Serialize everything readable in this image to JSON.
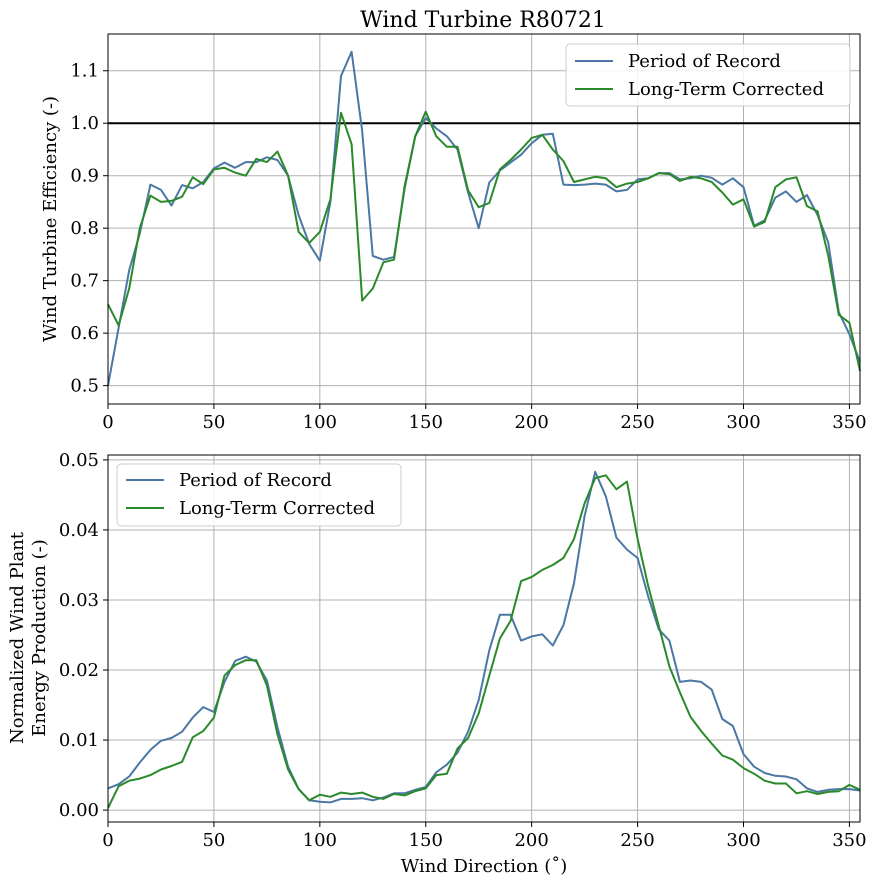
{
  "chart_data": [
    {
      "type": "line",
      "title": "Wind Turbine R80721",
      "xlabel": "",
      "ylabel": "Wind Turbine Efficiency (-)",
      "xlim": [
        0,
        355
      ],
      "ylim": [
        0.465,
        1.17
      ],
      "xticks": [
        0,
        50,
        100,
        150,
        200,
        250,
        300,
        350
      ],
      "xtick_labels": [
        "0",
        "50",
        "100",
        "150",
        "200",
        "250",
        "300",
        "350"
      ],
      "yticks": [
        0.5,
        0.6,
        0.7,
        0.8,
        0.9,
        1.0,
        1.1
      ],
      "ytick_labels": [
        "0.5",
        "0.6",
        "0.7",
        "0.8",
        "0.9",
        "1.0",
        "1.1"
      ],
      "grid": true,
      "legend_position": "upper right",
      "reference_line": {
        "y": 1.0,
        "color": "#000000"
      },
      "x": [
        0,
        5,
        10,
        15,
        20,
        25,
        30,
        35,
        40,
        45,
        50,
        55,
        60,
        65,
        70,
        75,
        80,
        85,
        90,
        95,
        100,
        105,
        110,
        115,
        120,
        125,
        130,
        135,
        140,
        145,
        150,
        155,
        160,
        165,
        170,
        175,
        180,
        185,
        190,
        195,
        200,
        205,
        210,
        215,
        220,
        225,
        230,
        235,
        240,
        245,
        250,
        255,
        260,
        265,
        270,
        275,
        280,
        285,
        290,
        295,
        300,
        305,
        310,
        315,
        320,
        325,
        330,
        335,
        340,
        345,
        350,
        355
      ],
      "series": [
        {
          "name": "Period of Record",
          "color": "#4a77a3",
          "values": [
            0.5,
            0.61,
            0.72,
            0.79,
            0.883,
            0.873,
            0.843,
            0.882,
            0.876,
            0.888,
            0.914,
            0.925,
            0.915,
            0.926,
            0.926,
            0.935,
            0.93,
            0.9,
            0.825,
            0.77,
            0.738,
            0.85,
            1.09,
            1.136,
            0.985,
            0.747,
            0.74,
            0.745,
            0.875,
            0.975,
            1.01,
            0.99,
            0.975,
            0.95,
            0.868,
            0.8,
            0.887,
            0.91,
            0.925,
            0.94,
            0.962,
            0.978,
            0.98,
            0.883,
            0.882,
            0.883,
            0.885,
            0.883,
            0.87,
            0.873,
            0.893,
            0.895,
            0.905,
            0.905,
            0.893,
            0.895,
            0.9,
            0.896,
            0.883,
            0.895,
            0.878,
            0.805,
            0.815,
            0.858,
            0.87,
            0.85,
            0.863,
            0.825,
            0.773,
            0.64,
            0.598,
            0.545
          ]
        },
        {
          "name": "Long-Term Corrected",
          "color": "#2a8a2a",
          "values": [
            0.655,
            0.615,
            0.685,
            0.8,
            0.862,
            0.85,
            0.852,
            0.86,
            0.897,
            0.884,
            0.912,
            0.915,
            0.906,
            0.9,
            0.932,
            0.926,
            0.946,
            0.9,
            0.793,
            0.772,
            0.793,
            0.855,
            1.02,
            0.96,
            0.662,
            0.685,
            0.735,
            0.74,
            0.88,
            0.975,
            1.022,
            0.975,
            0.955,
            0.955,
            0.872,
            0.84,
            0.848,
            0.912,
            0.93,
            0.95,
            0.972,
            0.978,
            0.95,
            0.928,
            0.888,
            0.893,
            0.898,
            0.895,
            0.878,
            0.885,
            0.888,
            0.895,
            0.905,
            0.903,
            0.89,
            0.898,
            0.895,
            0.888,
            0.868,
            0.845,
            0.855,
            0.803,
            0.812,
            0.878,
            0.893,
            0.897,
            0.842,
            0.832,
            0.748,
            0.635,
            0.62,
            0.528
          ]
        }
      ]
    },
    {
      "type": "line",
      "title": "",
      "xlabel": "Wind Direction (˚)",
      "ylabel": "Normalized Wind Plant Energy Production (-)",
      "ylabel_lines": [
        "Normalized Wind Plant",
        "Energy Production (-)"
      ],
      "xlim": [
        0,
        355
      ],
      "ylim": [
        -0.0017,
        0.0507
      ],
      "xticks": [
        0,
        50,
        100,
        150,
        200,
        250,
        300,
        350
      ],
      "xtick_labels": [
        "0",
        "50",
        "100",
        "150",
        "200",
        "250",
        "300",
        "350"
      ],
      "yticks": [
        0.0,
        0.01,
        0.02,
        0.03,
        0.04,
        0.05
      ],
      "ytick_labels": [
        "0.00",
        "0.01",
        "0.02",
        "0.03",
        "0.04",
        "0.05"
      ],
      "grid": true,
      "legend_position": "upper left",
      "x": [
        0,
        5,
        10,
        15,
        20,
        25,
        30,
        35,
        40,
        45,
        50,
        55,
        60,
        65,
        70,
        75,
        80,
        85,
        90,
        95,
        100,
        105,
        110,
        115,
        120,
        125,
        130,
        135,
        140,
        145,
        150,
        155,
        160,
        165,
        170,
        175,
        180,
        185,
        190,
        195,
        200,
        205,
        210,
        215,
        220,
        225,
        230,
        235,
        240,
        245,
        250,
        255,
        260,
        265,
        270,
        275,
        280,
        285,
        290,
        295,
        300,
        305,
        310,
        315,
        320,
        325,
        330,
        335,
        340,
        345,
        350,
        355
      ],
      "series": [
        {
          "name": "Period of Record",
          "color": "#4a77a3",
          "values": [
            0.0031,
            0.0037,
            0.0048,
            0.0068,
            0.0086,
            0.0099,
            0.0103,
            0.0112,
            0.0132,
            0.0147,
            0.014,
            0.0183,
            0.0213,
            0.0219,
            0.0212,
            0.0185,
            0.0118,
            0.0062,
            0.003,
            0.0014,
            0.0012,
            0.0011,
            0.0016,
            0.0016,
            0.0017,
            0.0014,
            0.0018,
            0.0024,
            0.0024,
            0.0029,
            0.0033,
            0.0054,
            0.0065,
            0.0082,
            0.0112,
            0.0157,
            0.0228,
            0.0279,
            0.0279,
            0.0242,
            0.0248,
            0.0251,
            0.0235,
            0.0264,
            0.0324,
            0.042,
            0.0483,
            0.0448,
            0.0389,
            0.0372,
            0.036,
            0.0305,
            0.0258,
            0.0242,
            0.0183,
            0.0185,
            0.0183,
            0.0172,
            0.013,
            0.012,
            0.008,
            0.0062,
            0.0053,
            0.0049,
            0.0048,
            0.0044,
            0.0031,
            0.0026,
            0.0029,
            0.003,
            0.003,
            0.0028
          ]
        },
        {
          "name": "Long-Term Corrected",
          "color": "#2a8a2a",
          "values": [
            0.0003,
            0.0034,
            0.0042,
            0.0045,
            0.005,
            0.0058,
            0.0063,
            0.0069,
            0.0104,
            0.0113,
            0.0132,
            0.0192,
            0.0207,
            0.0214,
            0.0214,
            0.0178,
            0.0108,
            0.0058,
            0.003,
            0.0014,
            0.0022,
            0.0019,
            0.0025,
            0.0023,
            0.0025,
            0.0019,
            0.0016,
            0.0023,
            0.0021,
            0.0027,
            0.0031,
            0.005,
            0.0052,
            0.0088,
            0.0103,
            0.0138,
            0.0192,
            0.0245,
            0.027,
            0.0327,
            0.0333,
            0.0343,
            0.035,
            0.036,
            0.0387,
            0.0438,
            0.0474,
            0.0478,
            0.0458,
            0.0469,
            0.0387,
            0.032,
            0.0263,
            0.0205,
            0.0168,
            0.0133,
            0.0113,
            0.0095,
            0.0078,
            0.0072,
            0.006,
            0.0052,
            0.0042,
            0.0038,
            0.0038,
            0.0024,
            0.0027,
            0.0023,
            0.0026,
            0.0027,
            0.0036,
            0.0029
          ]
        }
      ]
    }
  ]
}
